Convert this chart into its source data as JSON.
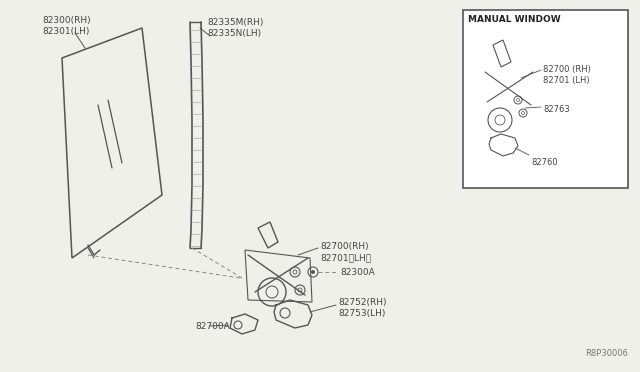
{
  "bg_color": "#f0f0ea",
  "line_color": "#555555",
  "text_color": "#444444",
  "fig_width": 6.4,
  "fig_height": 3.72,
  "diagram_ref": "R8P30006",
  "inset_title": "MANUAL WINDOW",
  "labels": {
    "glass": [
      "82300(RH)",
      "82301(LH)"
    ],
    "sash": [
      "82335M(RH)",
      "82335N(LH)"
    ],
    "regulator_main": [
      "82700(RH)",
      "82701〈LH〉"
    ],
    "bolt": "82300A",
    "handle_rh": [
      "82752(RH)",
      "82753(LH)"
    ],
    "handle_base": "82700A",
    "inset_reg": [
      "82700 (RH)",
      "82701 (LH)"
    ],
    "inset_clip": "82763",
    "inset_handle": "82760"
  }
}
